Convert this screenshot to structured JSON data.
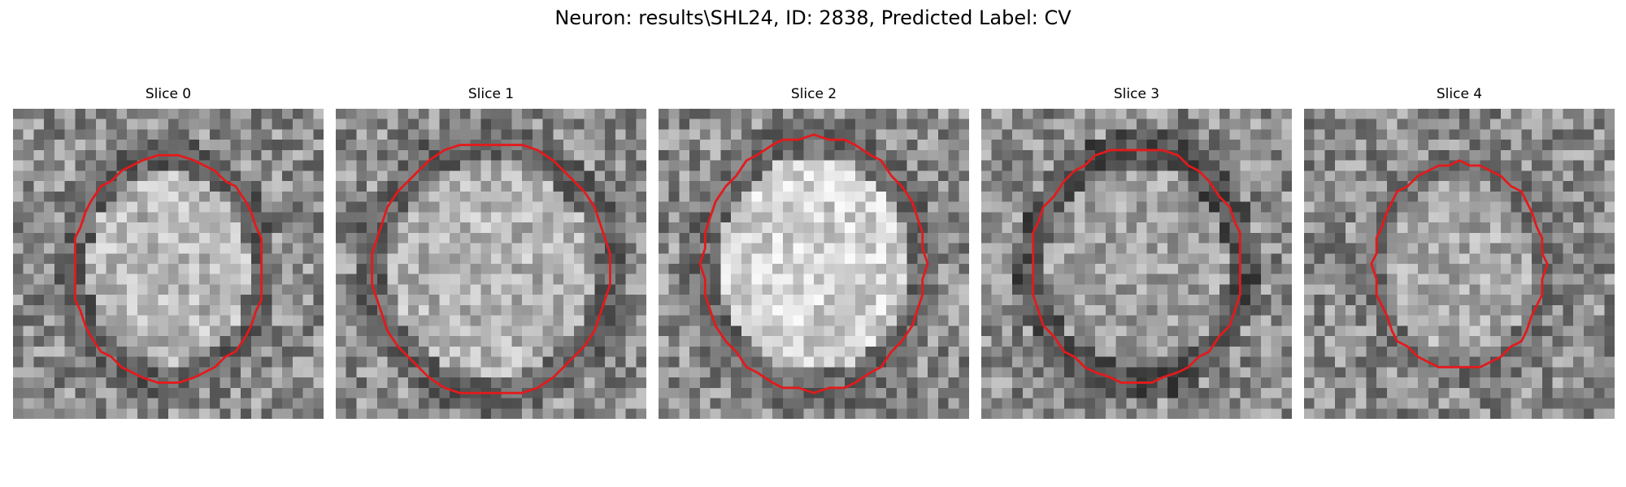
{
  "figure": {
    "title": "Neuron: results\\SHL24, ID: 2838, Predicted Label: CV",
    "contour_color": "#e31a1c",
    "colormap": "gray",
    "panels": [
      {
        "title": "Slice 0",
        "seed": 11,
        "grid": 30,
        "center_brightness": 0.72,
        "ring_darkness": 0.38
      },
      {
        "title": "Slice 1",
        "seed": 23,
        "grid": 30,
        "center_brightness": 0.7,
        "ring_darkness": 0.4
      },
      {
        "title": "Slice 2",
        "seed": 37,
        "grid": 30,
        "center_brightness": 0.82,
        "ring_darkness": 0.42
      },
      {
        "title": "Slice 3",
        "seed": 41,
        "grid": 30,
        "center_brightness": 0.62,
        "ring_darkness": 0.32
      },
      {
        "title": "Slice 4",
        "seed": 59,
        "grid": 30,
        "center_brightness": 0.66,
        "ring_darkness": 0.45
      }
    ]
  }
}
